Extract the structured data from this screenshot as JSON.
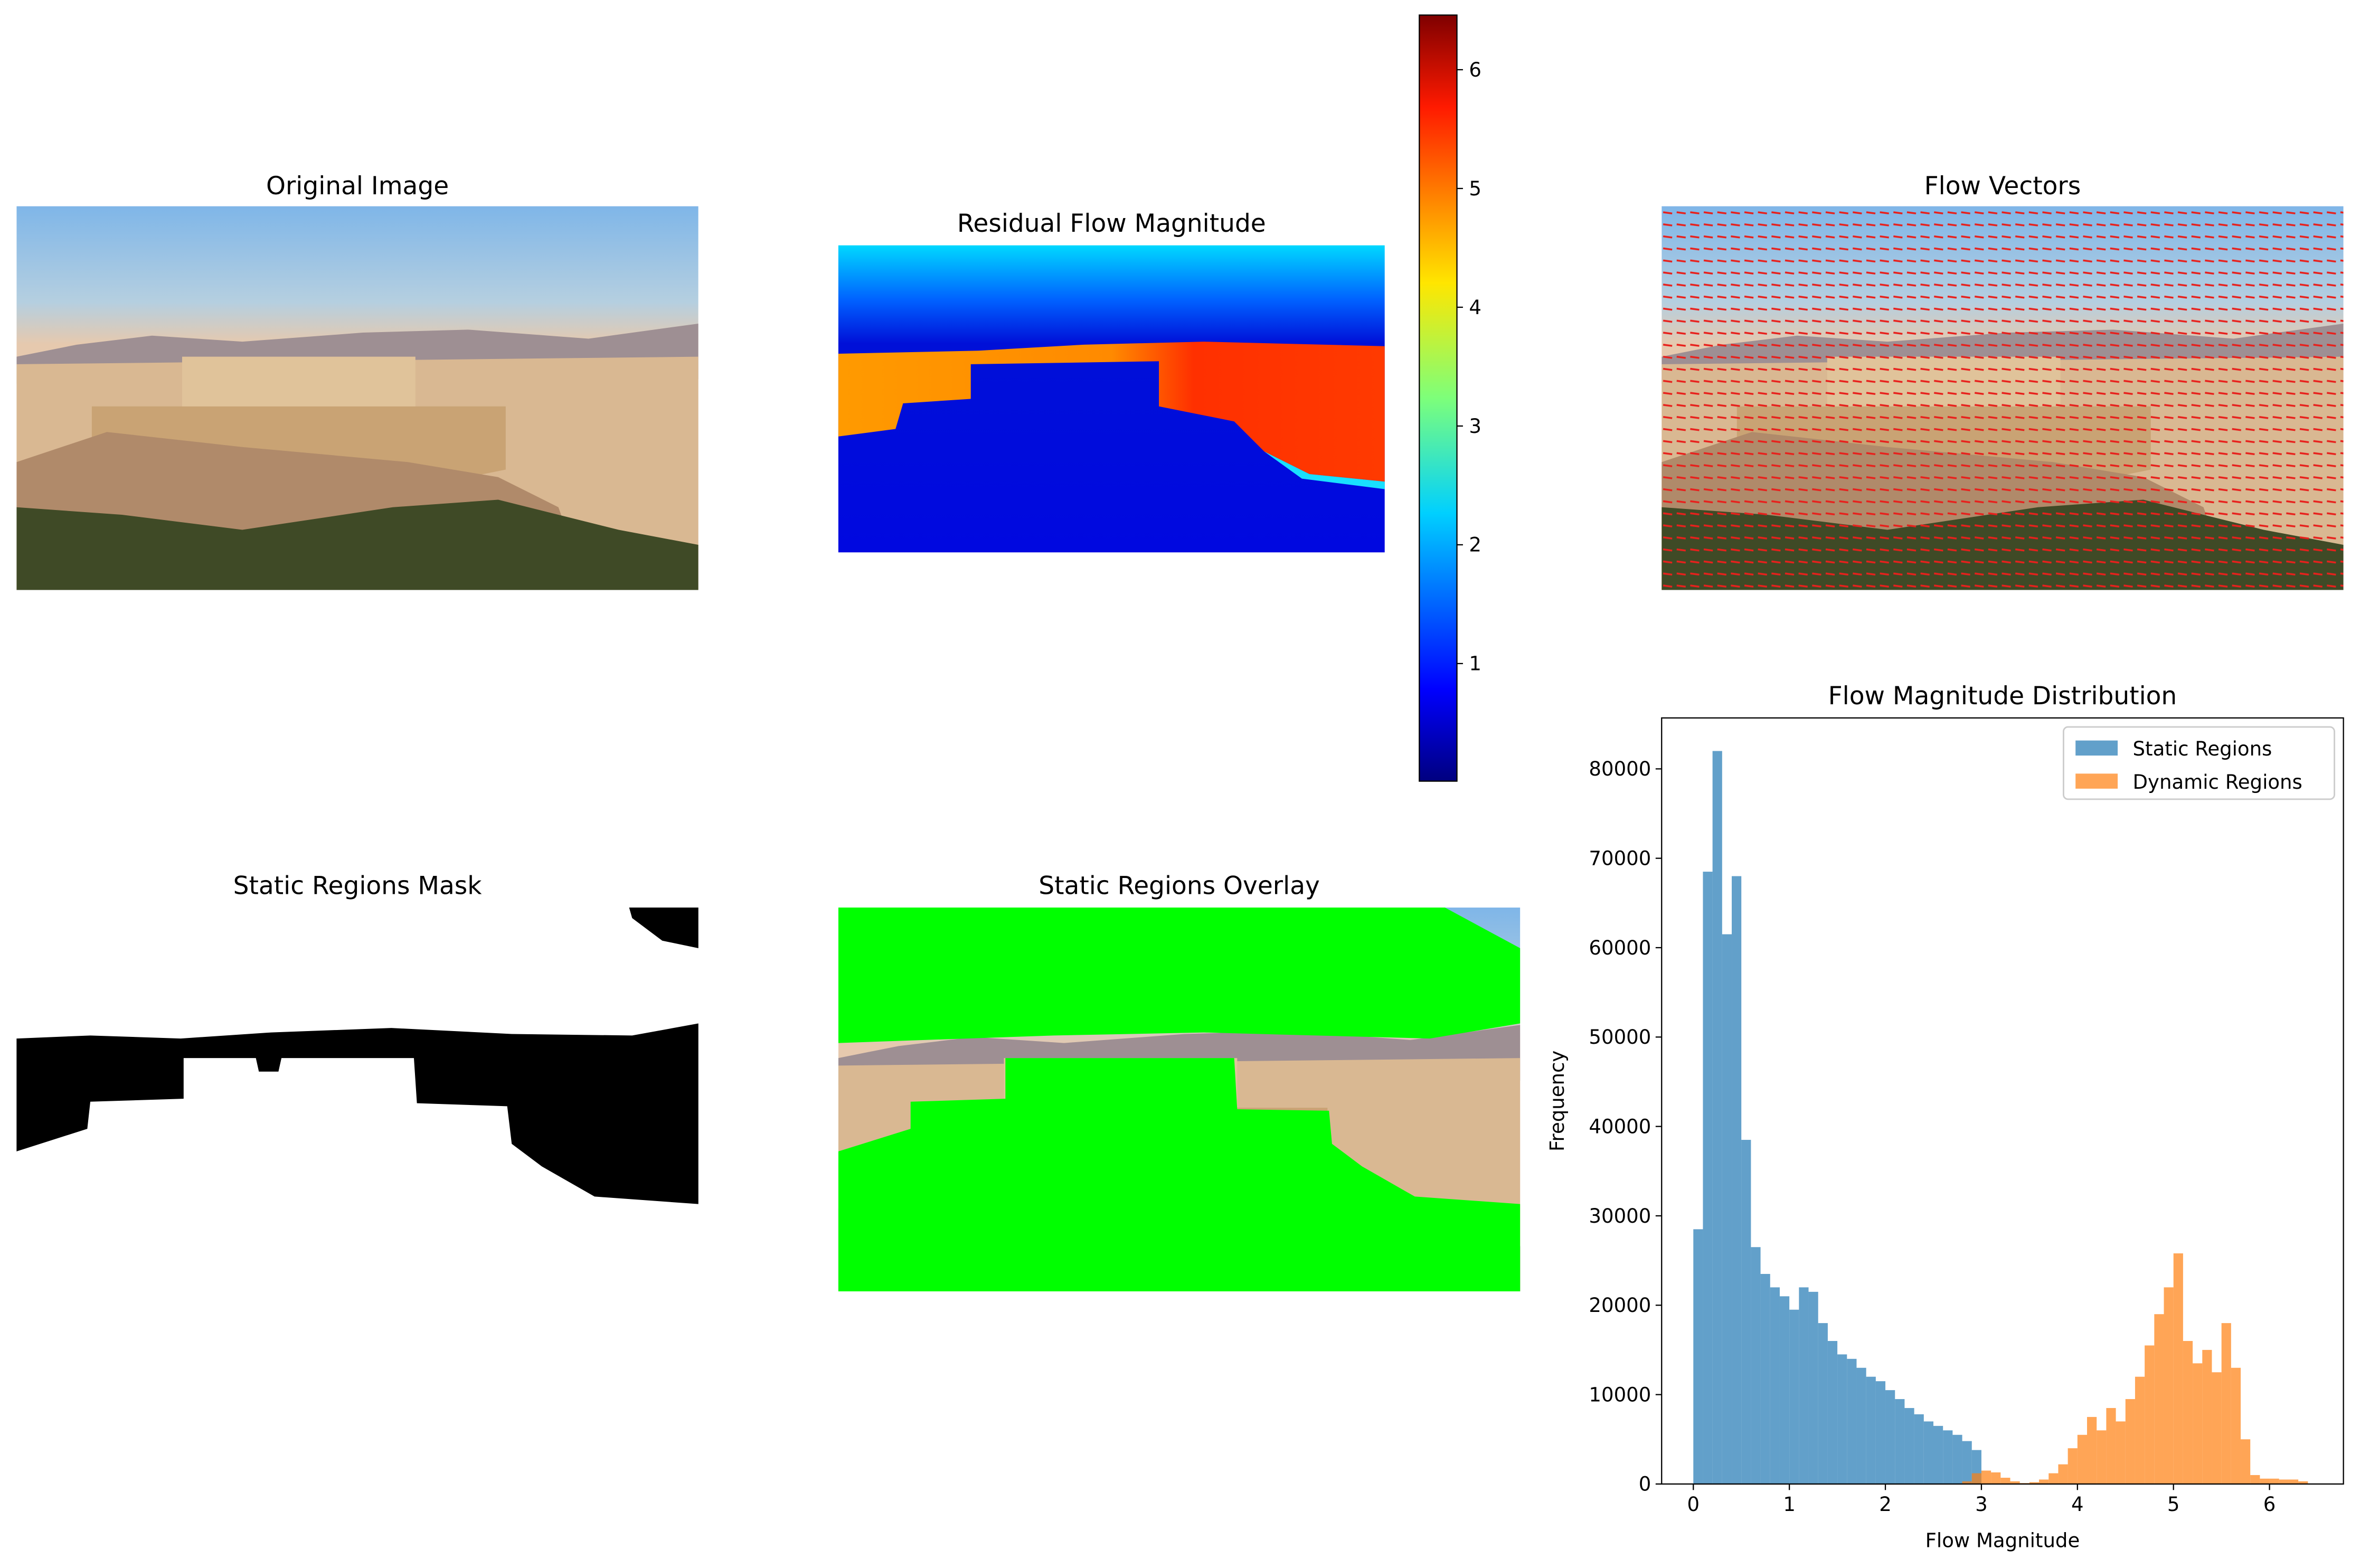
{
  "chart_data": [
    {
      "type": "image",
      "title": "Original Image"
    },
    {
      "type": "heatmap",
      "title": "Residual Flow Magnitude",
      "clim": [
        0.01,
        6.46
      ],
      "cticks": [
        1,
        2,
        3,
        4,
        5,
        6
      ]
    },
    {
      "type": "image",
      "title": "Flow Vectors"
    },
    {
      "type": "image",
      "title": "Static Regions Mask"
    },
    {
      "type": "image",
      "title": "Static Regions Overlay"
    },
    {
      "type": "histogram",
      "title": "Flow Magnitude Distribution",
      "x_label": "Flow Magnitude",
      "y_label": "Frequency",
      "xlim": [
        -0.33,
        6.77
      ],
      "ylim": [
        0,
        85700
      ],
      "xticks": [
        0,
        1,
        2,
        3,
        4,
        5,
        6
      ],
      "yticks": [
        0,
        10000,
        20000,
        30000,
        40000,
        50000,
        60000,
        70000,
        80000
      ],
      "alpha": 0.7,
      "legend": "upper right",
      "series": [
        {
          "name": "Static Regions",
          "color": "#1f77b4",
          "bins": [
            0,
            0.1,
            0.2,
            0.3,
            0.4,
            0.5,
            0.6,
            0.7,
            0.8,
            0.9,
            1.0,
            1.1,
            1.2,
            1.3,
            1.4,
            1.5,
            1.6,
            1.7,
            1.8,
            1.9,
            2.0,
            2.1,
            2.2,
            2.3,
            2.4,
            2.5,
            2.6,
            2.7,
            2.8,
            2.9,
            3.0
          ],
          "values": [
            28500,
            68500,
            82000,
            61500,
            68000,
            38500,
            26500,
            23500,
            22000,
            21000,
            19500,
            22000,
            21500,
            18000,
            16000,
            14500,
            14000,
            13000,
            12000,
            11500,
            10500,
            9500,
            8500,
            7800,
            7000,
            6500,
            6000,
            5500,
            4800,
            3800
          ]
        },
        {
          "name": "Dynamic Regions",
          "color": "#ff7f0e",
          "bins": [
            2.8,
            2.9,
            3.0,
            3.1,
            3.2,
            3.3,
            3.4,
            3.5,
            3.6,
            3.7,
            3.8,
            3.9,
            4.0,
            4.1,
            4.2,
            4.3,
            4.4,
            4.5,
            4.6,
            4.7,
            4.8,
            4.9,
            5.0,
            5.1,
            5.2,
            5.3,
            5.4,
            5.5,
            5.6,
            5.7,
            5.8,
            5.9,
            6.0,
            6.1,
            6.2,
            6.3,
            6.4
          ],
          "values": [
            300,
            1200,
            1500,
            1300,
            700,
            300,
            100,
            200,
            500,
            1200,
            2200,
            4000,
            5500,
            7500,
            6000,
            8500,
            7000,
            9500,
            12000,
            15500,
            19000,
            22000,
            25800,
            16000,
            13500,
            15000,
            12500,
            18000,
            13000,
            5000,
            1000,
            600,
            600,
            500,
            500,
            300
          ]
        }
      ]
    }
  ]
}
